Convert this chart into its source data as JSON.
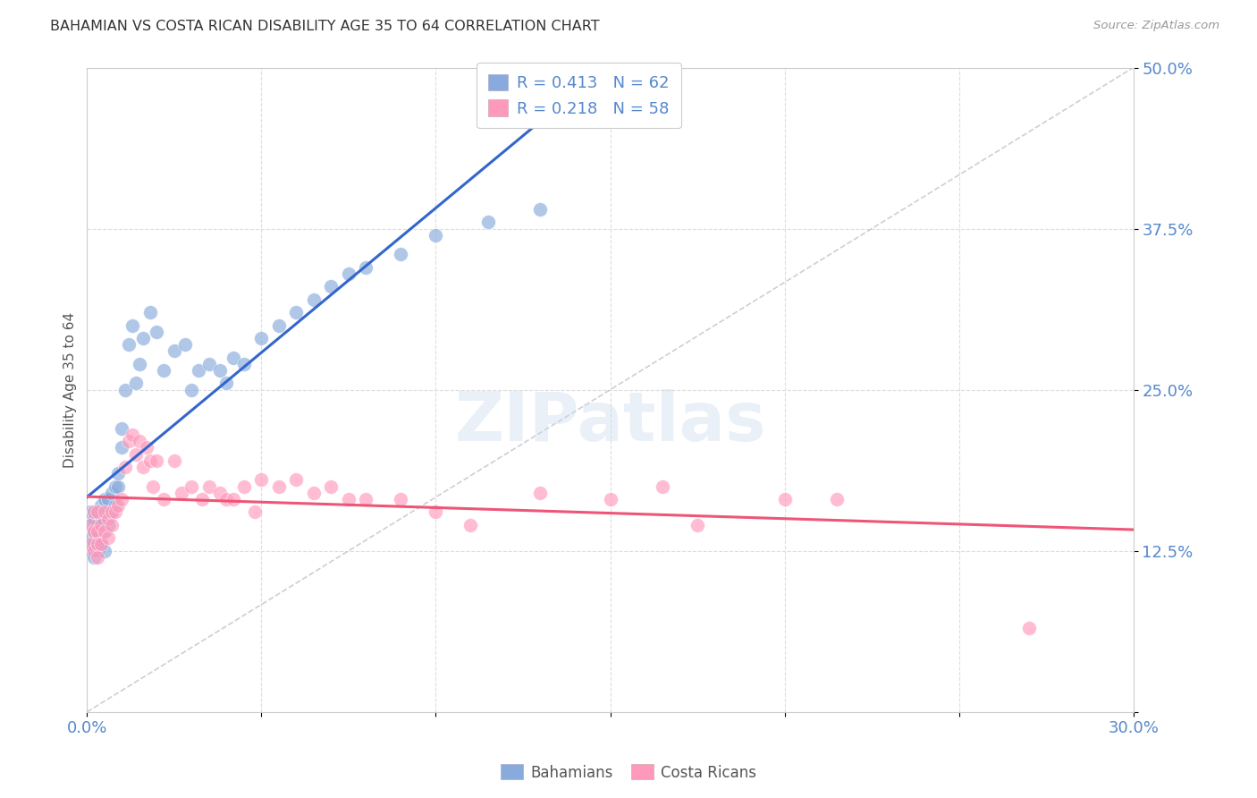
{
  "title": "BAHAMIAN VS COSTA RICAN DISABILITY AGE 35 TO 64 CORRELATION CHART",
  "source": "Source: ZipAtlas.com",
  "ylabel": "Disability Age 35 to 64",
  "xlim": [
    0.0,
    0.3
  ],
  "ylim": [
    0.0,
    0.5
  ],
  "xticks": [
    0.0,
    0.05,
    0.1,
    0.15,
    0.2,
    0.25,
    0.3
  ],
  "yticks": [
    0.0,
    0.125,
    0.25,
    0.375,
    0.5
  ],
  "xtick_labels": [
    "0.0%",
    "",
    "",
    "",
    "",
    "",
    "30.0%"
  ],
  "ytick_labels": [
    "",
    "12.5%",
    "25.0%",
    "37.5%",
    "50.0%"
  ],
  "legend1_r": "0.413",
  "legend1_n": "62",
  "legend2_r": "0.218",
  "legend2_n": "58",
  "blue_color": "#88AADD",
  "pink_color": "#FF99BB",
  "blue_line_color": "#3366CC",
  "pink_line_color": "#EE5577",
  "dashed_line_color": "#BBBBBB",
  "watermark_text": "ZIPatlas",
  "background_color": "#FFFFFF",
  "grid_color": "#DDDDDD",
  "tick_label_color": "#5588CC",
  "title_color": "#333333",
  "bahamians_x": [
    0.001,
    0.001,
    0.001,
    0.001,
    0.002,
    0.002,
    0.002,
    0.002,
    0.002,
    0.003,
    0.003,
    0.003,
    0.003,
    0.003,
    0.004,
    0.004,
    0.004,
    0.004,
    0.005,
    0.005,
    0.005,
    0.005,
    0.006,
    0.006,
    0.006,
    0.007,
    0.007,
    0.008,
    0.008,
    0.009,
    0.009,
    0.01,
    0.01,
    0.011,
    0.012,
    0.013,
    0.014,
    0.015,
    0.016,
    0.018,
    0.02,
    0.022,
    0.025,
    0.028,
    0.03,
    0.032,
    0.035,
    0.038,
    0.04,
    0.042,
    0.045,
    0.05,
    0.055,
    0.06,
    0.065,
    0.07,
    0.075,
    0.08,
    0.09,
    0.1,
    0.115,
    0.13
  ],
  "bahamians_y": [
    0.155,
    0.145,
    0.135,
    0.125,
    0.155,
    0.14,
    0.13,
    0.12,
    0.15,
    0.155,
    0.145,
    0.125,
    0.14,
    0.13,
    0.155,
    0.145,
    0.13,
    0.16,
    0.165,
    0.15,
    0.14,
    0.125,
    0.155,
    0.165,
    0.145,
    0.17,
    0.155,
    0.175,
    0.16,
    0.175,
    0.185,
    0.205,
    0.22,
    0.25,
    0.285,
    0.3,
    0.255,
    0.27,
    0.29,
    0.31,
    0.295,
    0.265,
    0.28,
    0.285,
    0.25,
    0.265,
    0.27,
    0.265,
    0.255,
    0.275,
    0.27,
    0.29,
    0.3,
    0.31,
    0.32,
    0.33,
    0.34,
    0.345,
    0.355,
    0.37,
    0.38,
    0.39
  ],
  "costaricans_x": [
    0.001,
    0.001,
    0.002,
    0.002,
    0.002,
    0.003,
    0.003,
    0.003,
    0.003,
    0.004,
    0.004,
    0.005,
    0.005,
    0.006,
    0.006,
    0.007,
    0.007,
    0.008,
    0.009,
    0.01,
    0.011,
    0.012,
    0.013,
    0.014,
    0.015,
    0.016,
    0.017,
    0.018,
    0.019,
    0.02,
    0.022,
    0.025,
    0.027,
    0.03,
    0.033,
    0.035,
    0.038,
    0.04,
    0.042,
    0.045,
    0.048,
    0.05,
    0.055,
    0.06,
    0.065,
    0.07,
    0.075,
    0.08,
    0.09,
    0.1,
    0.11,
    0.13,
    0.15,
    0.165,
    0.175,
    0.2,
    0.215,
    0.27
  ],
  "costaricans_y": [
    0.145,
    0.13,
    0.155,
    0.14,
    0.125,
    0.155,
    0.14,
    0.13,
    0.12,
    0.145,
    0.13,
    0.155,
    0.14,
    0.15,
    0.135,
    0.155,
    0.145,
    0.155,
    0.16,
    0.165,
    0.19,
    0.21,
    0.215,
    0.2,
    0.21,
    0.19,
    0.205,
    0.195,
    0.175,
    0.195,
    0.165,
    0.195,
    0.17,
    0.175,
    0.165,
    0.175,
    0.17,
    0.165,
    0.165,
    0.175,
    0.155,
    0.18,
    0.175,
    0.18,
    0.17,
    0.175,
    0.165,
    0.165,
    0.165,
    0.155,
    0.145,
    0.17,
    0.165,
    0.175,
    0.145,
    0.165,
    0.165,
    0.065
  ]
}
